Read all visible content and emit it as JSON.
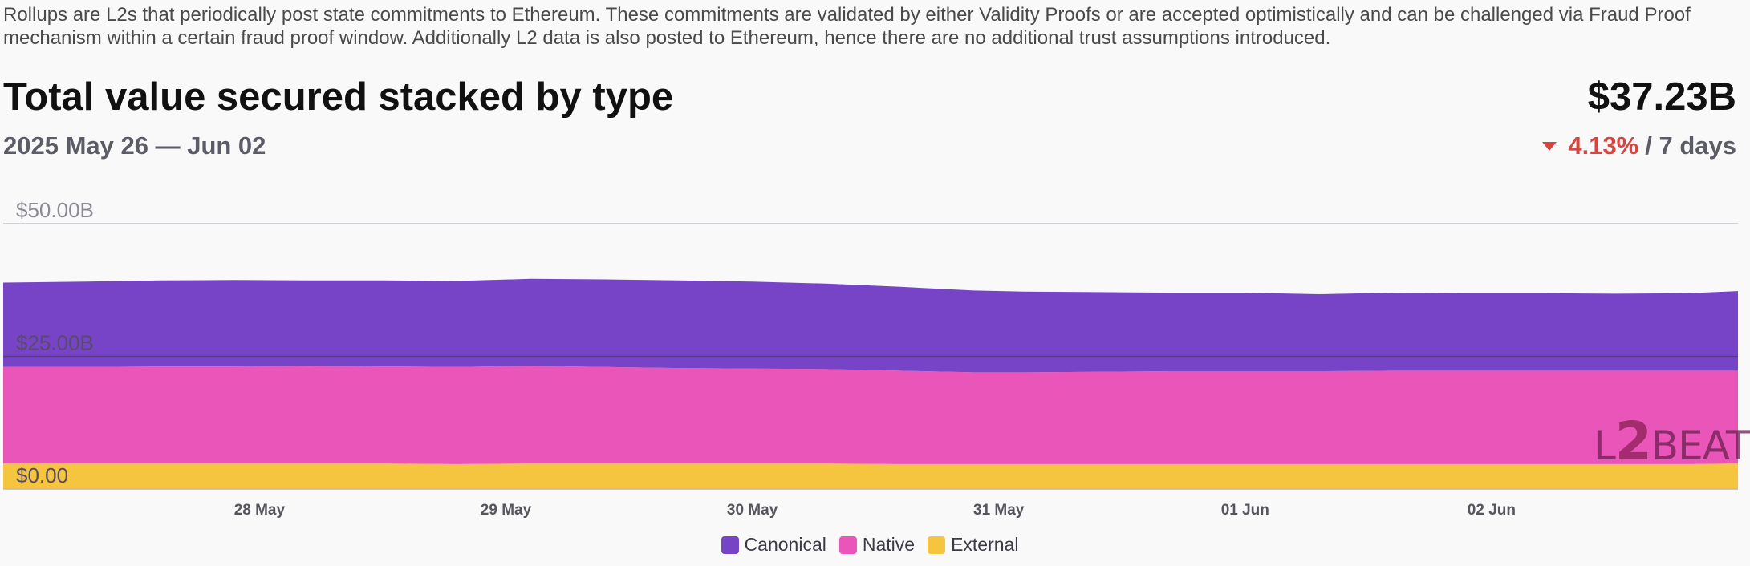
{
  "description": "Rollups are L2s that periodically post state commitments to Ethereum. These commitments are validated by either Validity Proofs or are accepted optimistically and can be challenged via Fraud Proof mechanism within a certain fraud proof window. Additionally L2 data is also posted to Ethereum, hence there are no additional trust assumptions introduced.",
  "header": {
    "title": "Total value secured stacked by type",
    "total": "$37.23B",
    "range": "2025 May 26 — Jun 02",
    "change_pct": "4.13%",
    "change_period": "/ 7 days"
  },
  "watermark": "L2BEAT",
  "colors": {
    "canonical": "#7744c8",
    "native": "#ea55ba",
    "external": "#f5c53f",
    "negative": "#d64540"
  },
  "chart_data": {
    "type": "area",
    "stacked": true,
    "ylim": [
      0,
      50
    ],
    "yticks": [
      {
        "value": 0,
        "label": "$0.00"
      },
      {
        "value": 25,
        "label": "$25.00B"
      },
      {
        "value": 50,
        "label": "$50.00B"
      }
    ],
    "xlim": [
      25.96,
      33.0
    ],
    "xticks": [
      {
        "value": 27.0,
        "label": "28 May"
      },
      {
        "value": 28.0,
        "label": "29 May"
      },
      {
        "value": 29.0,
        "label": "30 May"
      },
      {
        "value": 30.0,
        "label": "31 May"
      },
      {
        "value": 31.0,
        "label": "01 Jun"
      },
      {
        "value": 32.0,
        "label": "02 Jun"
      }
    ],
    "x": [
      25.96,
      26.3,
      26.6,
      26.9,
      27.2,
      27.5,
      27.8,
      28.1,
      28.4,
      28.7,
      29.0,
      29.3,
      29.6,
      29.9,
      30.1,
      30.4,
      30.7,
      31.0,
      31.3,
      31.6,
      31.9,
      32.2,
      32.5,
      32.8,
      33.0
    ],
    "series": [
      {
        "name": "External",
        "values": [
          4.8,
          4.8,
          4.8,
          4.8,
          4.8,
          4.8,
          4.7,
          4.8,
          4.8,
          4.8,
          4.8,
          4.8,
          4.7,
          4.7,
          4.7,
          4.7,
          4.7,
          4.7,
          4.7,
          4.7,
          4.7,
          4.7,
          4.7,
          4.7,
          4.8
        ]
      },
      {
        "name": "Native",
        "values": [
          18.2,
          18.2,
          18.3,
          18.3,
          18.4,
          18.3,
          18.3,
          18.4,
          18.2,
          18.0,
          17.9,
          17.8,
          17.6,
          17.3,
          17.3,
          17.4,
          17.5,
          17.5,
          17.5,
          17.6,
          17.6,
          17.6,
          17.6,
          17.6,
          17.5
        ]
      },
      {
        "name": "Canonical",
        "values": [
          15.9,
          16.1,
          16.2,
          16.3,
          16.1,
          16.2,
          16.2,
          16.4,
          16.5,
          16.5,
          16.4,
          16.1,
          15.8,
          15.4,
          15.2,
          15.0,
          14.8,
          14.8,
          14.5,
          14.7,
          14.6,
          14.6,
          14.5,
          14.6,
          15.0
        ]
      }
    ],
    "legend": [
      "Canonical",
      "Native",
      "External"
    ],
    "legend_position": "bottom-center",
    "grid": true
  }
}
